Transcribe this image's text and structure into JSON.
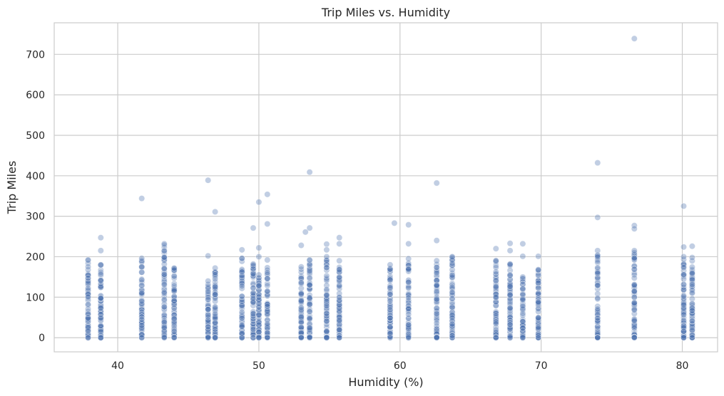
{
  "chart_data": {
    "type": "scatter",
    "title": "Trip Miles vs. Humidity",
    "xlabel": "Humidity (%)",
    "ylabel": "Trip Miles",
    "xlim": [
      35.5,
      82.5
    ],
    "ylim": [
      -35,
      778
    ],
    "xticks": [
      40,
      50,
      60,
      70,
      80
    ],
    "yticks": [
      0,
      100,
      200,
      300,
      400,
      500,
      600,
      700
    ],
    "grid": true,
    "point_color": "#4c72b0",
    "point_alpha": 0.35,
    "columns": [
      {
        "x": 37.9,
        "max": 192
      },
      {
        "x": 38.8,
        "max": 180
      },
      {
        "x": 41.7,
        "max": 196
      },
      {
        "x": 43.3,
        "max": 232
      },
      {
        "x": 44.0,
        "max": 172
      },
      {
        "x": 46.4,
        "max": 140
      },
      {
        "x": 46.9,
        "max": 172
      },
      {
        "x": 48.8,
        "max": 196
      },
      {
        "x": 49.6,
        "max": 182
      },
      {
        "x": 50.0,
        "max": 155
      },
      {
        "x": 50.6,
        "max": 192
      },
      {
        "x": 53.0,
        "max": 175
      },
      {
        "x": 53.6,
        "max": 192
      },
      {
        "x": 54.8,
        "max": 200
      },
      {
        "x": 55.7,
        "max": 190
      },
      {
        "x": 59.3,
        "max": 180
      },
      {
        "x": 60.6,
        "max": 195
      },
      {
        "x": 62.6,
        "max": 190
      },
      {
        "x": 63.7,
        "max": 200
      },
      {
        "x": 66.8,
        "max": 190
      },
      {
        "x": 67.8,
        "max": 182
      },
      {
        "x": 68.7,
        "max": 150
      },
      {
        "x": 69.8,
        "max": 168
      },
      {
        "x": 74.0,
        "max": 215
      },
      {
        "x": 76.6,
        "max": 215
      },
      {
        "x": 80.1,
        "max": 200
      },
      {
        "x": 80.7,
        "max": 198
      }
    ],
    "outliers": [
      {
        "x": 38.8,
        "y": 247
      },
      {
        "x": 38.8,
        "y": 215
      },
      {
        "x": 41.7,
        "y": 344
      },
      {
        "x": 46.4,
        "y": 389
      },
      {
        "x": 46.4,
        "y": 202
      },
      {
        "x": 46.9,
        "y": 311
      },
      {
        "x": 48.8,
        "y": 217
      },
      {
        "x": 49.6,
        "y": 271
      },
      {
        "x": 50.0,
        "y": 335
      },
      {
        "x": 50.0,
        "y": 222
      },
      {
        "x": 50.0,
        "y": 200
      },
      {
        "x": 50.6,
        "y": 354
      },
      {
        "x": 50.6,
        "y": 281
      },
      {
        "x": 53.0,
        "y": 228
      },
      {
        "x": 53.3,
        "y": 261
      },
      {
        "x": 53.6,
        "y": 409
      },
      {
        "x": 53.6,
        "y": 271
      },
      {
        "x": 54.8,
        "y": 231
      },
      {
        "x": 54.8,
        "y": 217
      },
      {
        "x": 55.7,
        "y": 247
      },
      {
        "x": 55.7,
        "y": 232
      },
      {
        "x": 59.6,
        "y": 283
      },
      {
        "x": 60.6,
        "y": 279
      },
      {
        "x": 60.6,
        "y": 232
      },
      {
        "x": 62.6,
        "y": 382
      },
      {
        "x": 62.6,
        "y": 240
      },
      {
        "x": 66.8,
        "y": 220
      },
      {
        "x": 67.8,
        "y": 233
      },
      {
        "x": 67.8,
        "y": 215
      },
      {
        "x": 68.7,
        "y": 232
      },
      {
        "x": 68.7,
        "y": 201
      },
      {
        "x": 69.8,
        "y": 201
      },
      {
        "x": 74.0,
        "y": 432
      },
      {
        "x": 74.0,
        "y": 297
      },
      {
        "x": 76.6,
        "y": 739
      },
      {
        "x": 76.6,
        "y": 277
      },
      {
        "x": 76.6,
        "y": 269
      },
      {
        "x": 80.1,
        "y": 325
      },
      {
        "x": 80.1,
        "y": 224
      },
      {
        "x": 80.7,
        "y": 226
      }
    ]
  }
}
